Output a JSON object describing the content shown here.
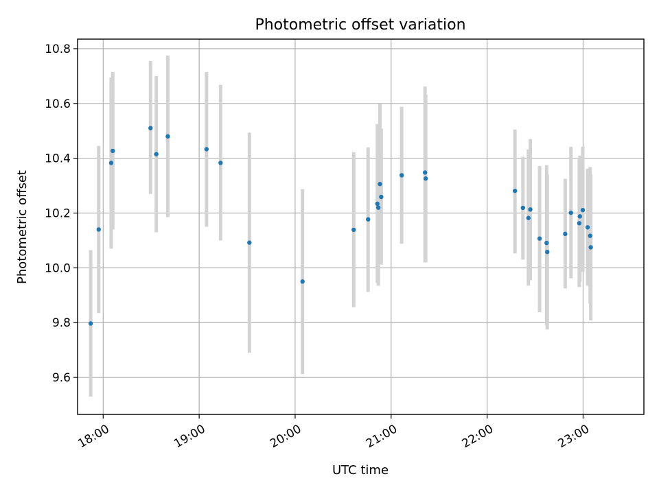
{
  "chart_data": {
    "type": "scatter",
    "title": "Photometric offset variation",
    "xlabel": "UTC time",
    "ylabel": "Photometric offset",
    "xlim_minutes": [
      1064,
      1418
    ],
    "ylim": [
      9.465,
      10.835
    ],
    "grid": true,
    "legend": "none",
    "x_ticks": [
      {
        "label": "18:00",
        "minutes": 1080
      },
      {
        "label": "19:00",
        "minutes": 1140
      },
      {
        "label": "20:00",
        "minutes": 1200
      },
      {
        "label": "21:00",
        "minutes": 1260
      },
      {
        "label": "22:00",
        "minutes": 1320
      },
      {
        "label": "23:00",
        "minutes": 1380
      }
    ],
    "y_ticks": [
      {
        "label": "9.6",
        "value": 9.6
      },
      {
        "label": "9.8",
        "value": 9.8
      },
      {
        "label": "10.0",
        "value": 10.0
      },
      {
        "label": "10.2",
        "value": 10.2
      },
      {
        "label": "10.4",
        "value": 10.4
      },
      {
        "label": "10.6",
        "value": 10.6
      },
      {
        "label": "10.8",
        "value": 10.8
      }
    ],
    "marker_color": "#1f77b4",
    "errorbar_color": "#d3d3d3",
    "points": [
      {
        "t": 1072.2,
        "y": 9.797,
        "lo": 9.53,
        "hi": 10.065
      },
      {
        "t": 1077.2,
        "y": 10.14,
        "lo": 9.835,
        "hi": 10.445
      },
      {
        "t": 1085.0,
        "y": 10.383,
        "lo": 10.07,
        "hi": 10.695
      },
      {
        "t": 1086.0,
        "y": 10.427,
        "lo": 10.14,
        "hi": 10.715
      },
      {
        "t": 1109.6,
        "y": 10.51,
        "lo": 10.27,
        "hi": 10.755
      },
      {
        "t": 1113.2,
        "y": 10.415,
        "lo": 10.13,
        "hi": 10.7
      },
      {
        "t": 1120.4,
        "y": 10.48,
        "lo": 10.185,
        "hi": 10.775
      },
      {
        "t": 1144.6,
        "y": 10.433,
        "lo": 10.15,
        "hi": 10.715
      },
      {
        "t": 1153.4,
        "y": 10.383,
        "lo": 10.1,
        "hi": 10.668
      },
      {
        "t": 1171.4,
        "y": 10.092,
        "lo": 9.69,
        "hi": 10.493
      },
      {
        "t": 1204.6,
        "y": 9.95,
        "lo": 9.612,
        "hi": 10.287
      },
      {
        "t": 1236.6,
        "y": 10.139,
        "lo": 9.856,
        "hi": 10.422
      },
      {
        "t": 1245.6,
        "y": 10.177,
        "lo": 9.912,
        "hi": 10.44
      },
      {
        "t": 1251.4,
        "y": 10.234,
        "lo": 9.945,
        "hi": 10.525
      },
      {
        "t": 1252.0,
        "y": 10.22,
        "lo": 9.935,
        "hi": 10.51
      },
      {
        "t": 1253.0,
        "y": 10.306,
        "lo": 10.02,
        "hi": 10.598
      },
      {
        "t": 1253.8,
        "y": 10.259,
        "lo": 10.012,
        "hi": 10.508
      },
      {
        "t": 1266.6,
        "y": 10.338,
        "lo": 10.088,
        "hi": 10.588
      },
      {
        "t": 1281.2,
        "y": 10.348,
        "lo": 10.02,
        "hi": 10.662
      },
      {
        "t": 1281.6,
        "y": 10.326,
        "lo": 10.02,
        "hi": 10.632
      },
      {
        "t": 1337.4,
        "y": 10.281,
        "lo": 10.053,
        "hi": 10.505
      },
      {
        "t": 1342.4,
        "y": 10.219,
        "lo": 10.03,
        "hi": 10.405
      },
      {
        "t": 1345.8,
        "y": 10.182,
        "lo": 9.935,
        "hi": 10.432
      },
      {
        "t": 1347.0,
        "y": 10.213,
        "lo": 9.955,
        "hi": 10.47
      },
      {
        "t": 1352.8,
        "y": 10.107,
        "lo": 9.838,
        "hi": 10.372
      },
      {
        "t": 1357.2,
        "y": 10.091,
        "lo": 9.79,
        "hi": 10.375
      },
      {
        "t": 1357.6,
        "y": 10.058,
        "lo": 9.775,
        "hi": 10.34
      },
      {
        "t": 1368.8,
        "y": 10.124,
        "lo": 9.925,
        "hi": 10.325
      },
      {
        "t": 1372.4,
        "y": 10.201,
        "lo": 9.962,
        "hi": 10.442
      },
      {
        "t": 1377.6,
        "y": 10.163,
        "lo": 9.93,
        "hi": 10.395
      },
      {
        "t": 1378.0,
        "y": 10.188,
        "lo": 9.95,
        "hi": 10.41
      },
      {
        "t": 1379.8,
        "y": 10.211,
        "lo": 9.985,
        "hi": 10.442
      },
      {
        "t": 1382.8,
        "y": 10.148,
        "lo": 9.935,
        "hi": 10.362
      },
      {
        "t": 1384.4,
        "y": 10.117,
        "lo": 9.87,
        "hi": 10.368
      },
      {
        "t": 1384.8,
        "y": 10.075,
        "lo": 9.808,
        "hi": 10.34
      }
    ]
  }
}
